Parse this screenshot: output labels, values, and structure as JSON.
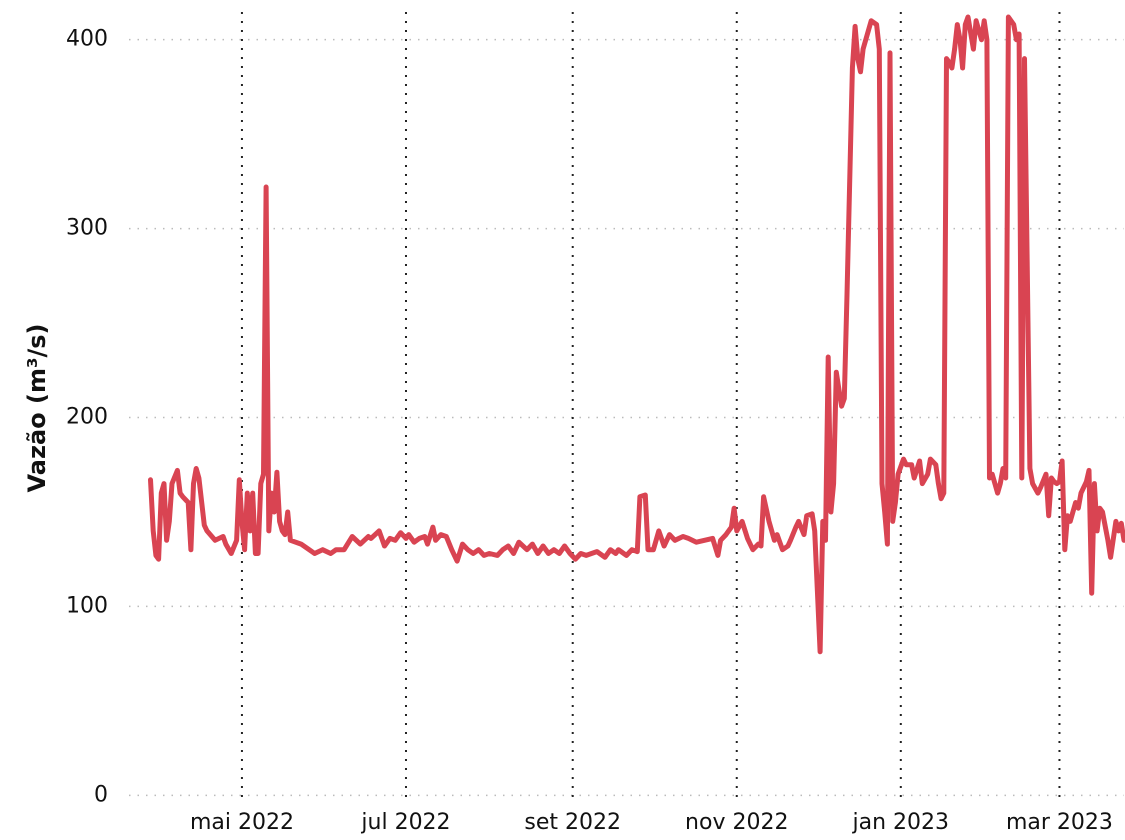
{
  "chart_data": {
    "type": "line",
    "y_label": "Vazão (m³/s)",
    "color": "#d94452",
    "grid": true,
    "xlim": [
      78,
      448
    ],
    "xticks": [
      {
        "value": 120,
        "label": "mai 2022"
      },
      {
        "value": 181,
        "label": "jul 2022"
      },
      {
        "value": 243,
        "label": "set 2022"
      },
      {
        "value": 304,
        "label": "nov 2022"
      },
      {
        "value": 365,
        "label": "jan 2023"
      },
      {
        "value": 424,
        "label": "mar 2023"
      }
    ],
    "ylim": [
      -3,
      412
    ],
    "yticks": [
      0,
      100,
      200,
      300,
      400
    ],
    "x": [
      86,
      87,
      88,
      89,
      90,
      91,
      92,
      93,
      94,
      96,
      97,
      98,
      100,
      101,
      102,
      103,
      104,
      106,
      107,
      110,
      113,
      114,
      116,
      118,
      119,
      120,
      121,
      122,
      123,
      124,
      125,
      126,
      127,
      128,
      129,
      130,
      131,
      132,
      133,
      134,
      135,
      136,
      137,
      138,
      142,
      145,
      147,
      150,
      153,
      155,
      158,
      161,
      164,
      167,
      168,
      171,
      173,
      175,
      177,
      179,
      181,
      182,
      184,
      186,
      188,
      189,
      191,
      192,
      194,
      196,
      198,
      200,
      202,
      204,
      206,
      208,
      210,
      212,
      215,
      217,
      219,
      221,
      223,
      226,
      228,
      230,
      232,
      234,
      236,
      238,
      240,
      242,
      244,
      246,
      248,
      250,
      252,
      255,
      257,
      259,
      260,
      263,
      265,
      267,
      268,
      270,
      271,
      273,
      275,
      277,
      279,
      281,
      284,
      286,
      289,
      292,
      295,
      297,
      298,
      300,
      302,
      303,
      304,
      306,
      308,
      310,
      312,
      313,
      314,
      316,
      318,
      319,
      321,
      323,
      324,
      326,
      327,
      329,
      330,
      332,
      333,
      334,
      335,
      336,
      337,
      338,
      339,
      340,
      341,
      342,
      343,
      344,
      345,
      347,
      348,
      349,
      350,
      351,
      353,
      354,
      356,
      357,
      358,
      359,
      360,
      361,
      362,
      363,
      364,
      366,
      367,
      369,
      370,
      372,
      373,
      375,
      376,
      378,
      379,
      380,
      381,
      382,
      383,
      384,
      385,
      386,
      387,
      388,
      389,
      390,
      392,
      393,
      395,
      396,
      397,
      398,
      399,
      400,
      401,
      402,
      403,
      404,
      405,
      407,
      408,
      409,
      410,
      411,
      413,
      414,
      416,
      417,
      419,
      420,
      421,
      422,
      423,
      424,
      425,
      426,
      427,
      428,
      430,
      431,
      432,
      434,
      435,
      436,
      437,
      438,
      439,
      440,
      442,
      443,
      445,
      446,
      447,
      448
    ],
    "values": [
      167,
      140,
      127,
      125,
      160,
      165,
      135,
      145,
      165,
      172,
      160,
      158,
      155,
      130,
      165,
      173,
      168,
      143,
      140,
      135,
      137,
      133,
      128,
      135,
      167,
      145,
      130,
      160,
      140,
      160,
      128,
      128,
      165,
      170,
      322,
      140,
      160,
      150,
      171,
      145,
      140,
      138,
      150,
      135,
      133,
      130,
      128,
      130,
      128,
      130,
      130,
      137,
      133,
      137,
      136,
      140,
      132,
      136,
      135,
      139,
      136,
      138,
      134,
      136,
      137,
      133,
      142,
      135,
      138,
      137,
      130,
      124,
      133,
      130,
      128,
      130,
      127,
      128,
      127,
      130,
      132,
      128,
      134,
      130,
      133,
      128,
      132,
      128,
      130,
      128,
      132,
      128,
      125,
      128,
      127,
      128,
      129,
      126,
      130,
      128,
      130,
      127,
      130,
      129,
      158,
      159,
      130,
      130,
      140,
      132,
      138,
      135,
      137,
      136,
      134,
      135,
      136,
      127,
      135,
      138,
      142,
      152,
      140,
      145,
      136,
      130,
      133,
      132,
      158,
      145,
      135,
      138,
      130,
      132,
      135,
      142,
      145,
      138,
      148,
      149,
      140,
      108,
      76,
      145,
      135,
      232,
      150,
      165,
      224,
      215,
      206,
      210,
      265,
      385,
      407,
      390,
      383,
      395,
      405,
      410,
      408,
      395,
      165,
      150,
      133,
      393,
      145,
      155,
      170,
      178,
      175,
      175,
      168,
      177,
      165,
      170,
      178,
      175,
      165,
      157,
      160,
      390,
      388,
      385,
      395,
      408,
      400,
      385,
      408,
      412,
      395,
      410,
      400,
      410,
      400,
      168,
      170,
      165,
      160,
      165,
      173,
      168,
      412,
      408,
      400,
      403,
      168,
      390,
      173,
      165,
      160,
      163,
      170,
      148,
      168,
      166,
      165,
      166,
      177,
      130,
      148,
      145,
      155,
      152,
      160,
      166,
      172,
      107,
      165,
      140,
      152,
      150,
      135,
      126,
      145,
      140,
      144,
      135
    ]
  }
}
